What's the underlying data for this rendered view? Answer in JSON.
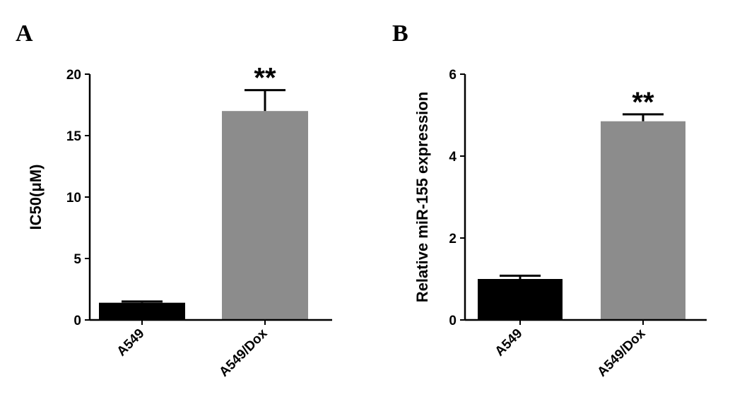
{
  "chart_data": [
    {
      "type": "bar",
      "panel": "A",
      "ylabel": "IC50(μM)",
      "categories": [
        "A549",
        "A549/Dox"
      ],
      "values": [
        1.4,
        17.0
      ],
      "errors": [
        0.1,
        1.7
      ],
      "significance": [
        "",
        "**"
      ],
      "ylim": [
        0,
        20
      ],
      "yticks": [
        0,
        5,
        10,
        15,
        20
      ],
      "bar_colors": [
        "#000000",
        "#8c8c8c"
      ],
      "grid": false,
      "legend": "none"
    },
    {
      "type": "bar",
      "panel": "B",
      "ylabel": "Relative miR-155 expression",
      "categories": [
        "A549",
        "A549/Dox"
      ],
      "values": [
        1.0,
        4.85
      ],
      "errors": [
        0.08,
        0.17
      ],
      "significance": [
        "",
        "**"
      ],
      "ylim": [
        0,
        6
      ],
      "yticks": [
        0,
        2,
        4,
        6
      ],
      "bar_colors": [
        "#000000",
        "#8c8c8c"
      ],
      "grid": false,
      "legend": "none"
    }
  ]
}
